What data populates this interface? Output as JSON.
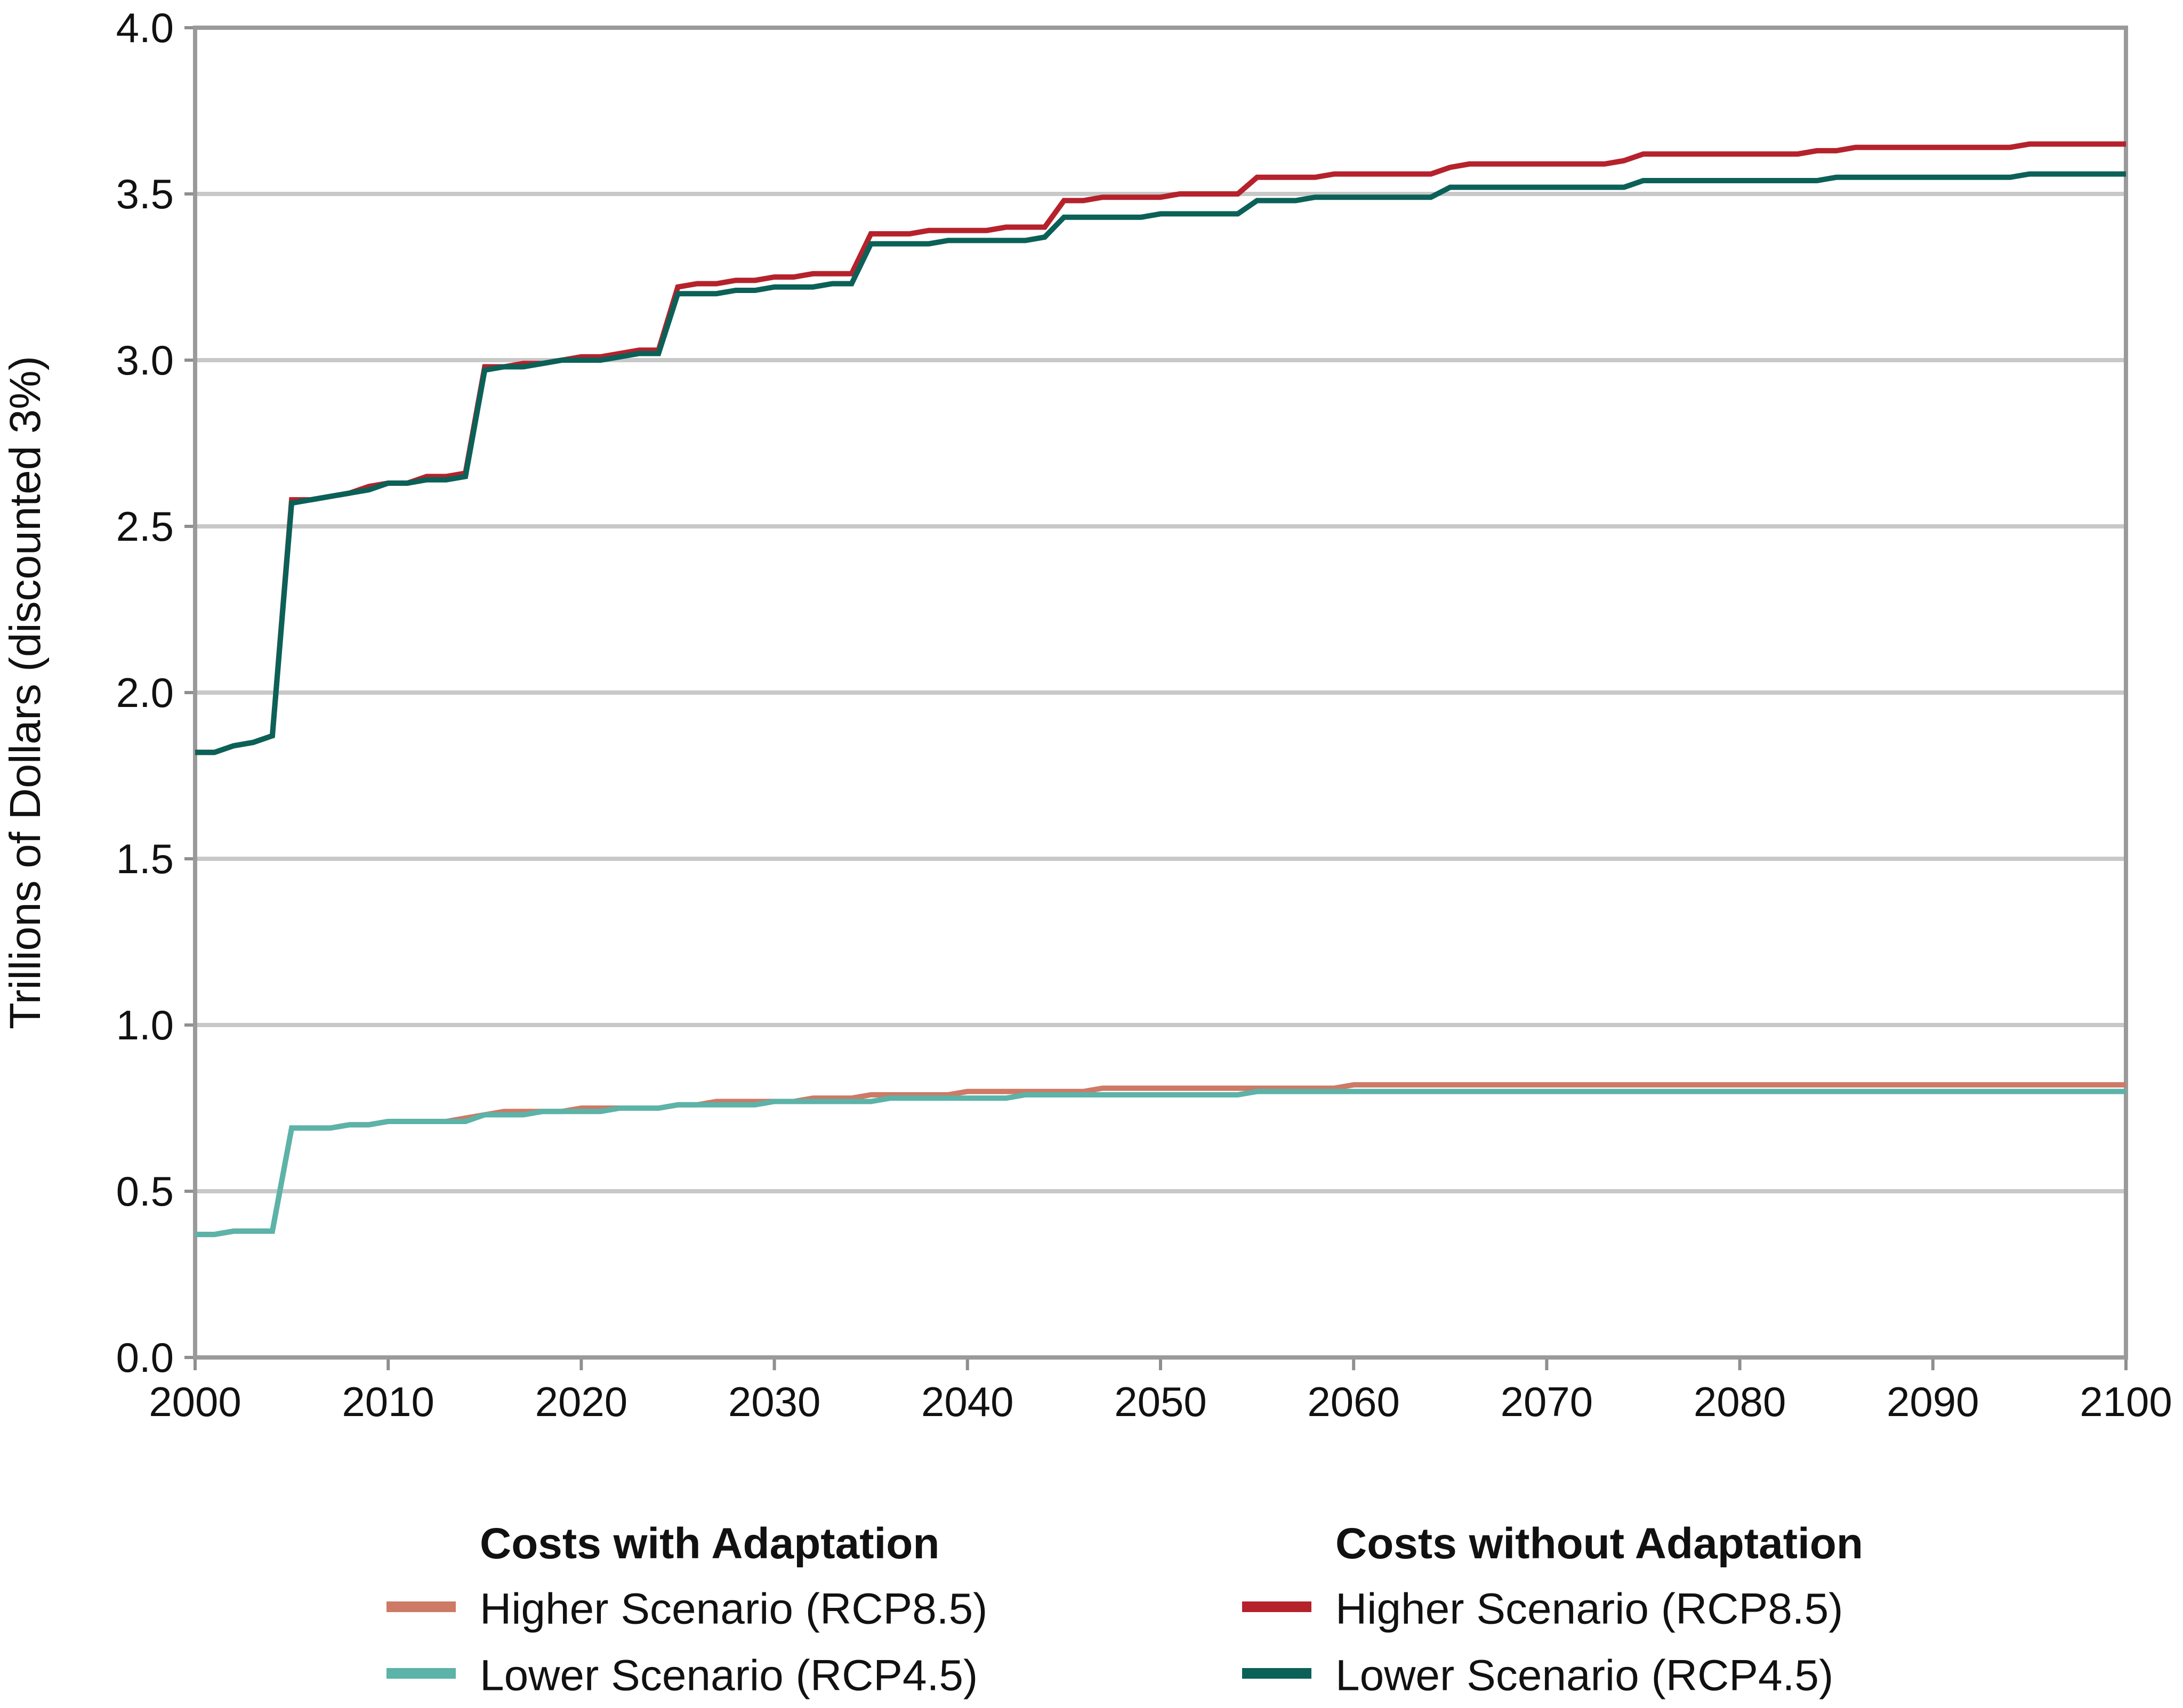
{
  "chart_data": {
    "type": "line",
    "title": "",
    "xlabel": "",
    "ylabel": "Trillions of Dollars (discounted 3%)",
    "xlim": [
      2000,
      2100
    ],
    "ylim": [
      0,
      4
    ],
    "x_ticks": [
      2000,
      2010,
      2020,
      2030,
      2040,
      2050,
      2060,
      2070,
      2080,
      2090,
      2100
    ],
    "y_ticks": [
      "0.0",
      "0.5",
      "1.0",
      "1.5",
      "2.0",
      "2.5",
      "3.0",
      "3.5",
      "4.0"
    ],
    "grid": "horizontal",
    "legend_position": "bottom",
    "legend_groups": [
      {
        "title": "Costs with Adaptation",
        "entries": [
          0,
          1
        ]
      },
      {
        "title": "Costs without Adaptation",
        "entries": [
          2,
          3
        ]
      }
    ],
    "series": [
      {
        "name": "Higher Scenario (RCP8.5)",
        "group": "Costs with Adaptation",
        "color": "#cd7a66",
        "points": [
          [
            2000,
            0.37
          ],
          [
            2001,
            0.37
          ],
          [
            2002,
            0.38
          ],
          [
            2003,
            0.38
          ],
          [
            2004,
            0.38
          ],
          [
            2005,
            0.69
          ],
          [
            2007,
            0.69
          ],
          [
            2008,
            0.7
          ],
          [
            2009,
            0.7
          ],
          [
            2010,
            0.71
          ],
          [
            2012,
            0.71
          ],
          [
            2013,
            0.71
          ],
          [
            2014,
            0.72
          ],
          [
            2015,
            0.73
          ],
          [
            2016,
            0.74
          ],
          [
            2019,
            0.74
          ],
          [
            2020,
            0.75
          ],
          [
            2022,
            0.75
          ],
          [
            2023,
            0.75
          ],
          [
            2024,
            0.75
          ],
          [
            2025,
            0.76
          ],
          [
            2026,
            0.76
          ],
          [
            2027,
            0.77
          ],
          [
            2030,
            0.77
          ],
          [
            2031,
            0.77
          ],
          [
            2032,
            0.78
          ],
          [
            2034,
            0.78
          ],
          [
            2035,
            0.79
          ],
          [
            2039,
            0.79
          ],
          [
            2040,
            0.8
          ],
          [
            2046,
            0.8
          ],
          [
            2047,
            0.81
          ],
          [
            2059,
            0.81
          ],
          [
            2060,
            0.82
          ],
          [
            2100,
            0.82
          ]
        ]
      },
      {
        "name": "Lower Scenario (RCP4.5)",
        "group": "Costs with Adaptation",
        "color": "#5cb3a8",
        "points": [
          [
            2000,
            0.37
          ],
          [
            2001,
            0.37
          ],
          [
            2002,
            0.38
          ],
          [
            2003,
            0.38
          ],
          [
            2004,
            0.38
          ],
          [
            2005,
            0.69
          ],
          [
            2007,
            0.69
          ],
          [
            2008,
            0.7
          ],
          [
            2009,
            0.7
          ],
          [
            2010,
            0.71
          ],
          [
            2014,
            0.71
          ],
          [
            2015,
            0.73
          ],
          [
            2017,
            0.73
          ],
          [
            2018,
            0.74
          ],
          [
            2021,
            0.74
          ],
          [
            2022,
            0.75
          ],
          [
            2024,
            0.75
          ],
          [
            2025,
            0.76
          ],
          [
            2029,
            0.76
          ],
          [
            2030,
            0.77
          ],
          [
            2035,
            0.77
          ],
          [
            2036,
            0.78
          ],
          [
            2042,
            0.78
          ],
          [
            2043,
            0.79
          ],
          [
            2054,
            0.79
          ],
          [
            2055,
            0.8
          ],
          [
            2100,
            0.8
          ]
        ]
      },
      {
        "name": "Higher Scenario (RCP8.5)",
        "group": "Costs without Adaptation",
        "color": "#b5222c",
        "points": [
          [
            2000,
            1.82
          ],
          [
            2001,
            1.82
          ],
          [
            2002,
            1.84
          ],
          [
            2003,
            1.85
          ],
          [
            2004,
            1.87
          ],
          [
            2005,
            2.58
          ],
          [
            2006,
            2.58
          ],
          [
            2007,
            2.59
          ],
          [
            2008,
            2.6
          ],
          [
            2009,
            2.62
          ],
          [
            2010,
            2.63
          ],
          [
            2011,
            2.63
          ],
          [
            2012,
            2.65
          ],
          [
            2013,
            2.65
          ],
          [
            2014,
            2.66
          ],
          [
            2015,
            2.98
          ],
          [
            2016,
            2.98
          ],
          [
            2017,
            2.99
          ],
          [
            2018,
            2.99
          ],
          [
            2019,
            3.0
          ],
          [
            2020,
            3.01
          ],
          [
            2021,
            3.01
          ],
          [
            2022,
            3.02
          ],
          [
            2023,
            3.03
          ],
          [
            2024,
            3.03
          ],
          [
            2025,
            3.22
          ],
          [
            2026,
            3.23
          ],
          [
            2027,
            3.23
          ],
          [
            2028,
            3.24
          ],
          [
            2029,
            3.24
          ],
          [
            2030,
            3.25
          ],
          [
            2031,
            3.25
          ],
          [
            2032,
            3.26
          ],
          [
            2034,
            3.26
          ],
          [
            2035,
            3.38
          ],
          [
            2037,
            3.38
          ],
          [
            2038,
            3.39
          ],
          [
            2041,
            3.39
          ],
          [
            2042,
            3.4
          ],
          [
            2044,
            3.4
          ],
          [
            2045,
            3.48
          ],
          [
            2046,
            3.48
          ],
          [
            2047,
            3.49
          ],
          [
            2050,
            3.49
          ],
          [
            2051,
            3.5
          ],
          [
            2054,
            3.5
          ],
          [
            2055,
            3.55
          ],
          [
            2058,
            3.55
          ],
          [
            2059,
            3.56
          ],
          [
            2064,
            3.56
          ],
          [
            2065,
            3.58
          ],
          [
            2066,
            3.59
          ],
          [
            2073,
            3.59
          ],
          [
            2074,
            3.6
          ],
          [
            2075,
            3.62
          ],
          [
            2083,
            3.62
          ],
          [
            2084,
            3.63
          ],
          [
            2085,
            3.63
          ],
          [
            2086,
            3.64
          ],
          [
            2094,
            3.64
          ],
          [
            2095,
            3.65
          ],
          [
            2100,
            3.65
          ]
        ]
      },
      {
        "name": "Lower Scenario (RCP4.5)",
        "group": "Costs without Adaptation",
        "color": "#0b6157",
        "points": [
          [
            2000,
            1.82
          ],
          [
            2001,
            1.82
          ],
          [
            2002,
            1.84
          ],
          [
            2003,
            1.85
          ],
          [
            2004,
            1.87
          ],
          [
            2005,
            2.57
          ],
          [
            2006,
            2.58
          ],
          [
            2007,
            2.59
          ],
          [
            2008,
            2.6
          ],
          [
            2009,
            2.61
          ],
          [
            2010,
            2.63
          ],
          [
            2011,
            2.63
          ],
          [
            2012,
            2.64
          ],
          [
            2013,
            2.64
          ],
          [
            2014,
            2.65
          ],
          [
            2015,
            2.97
          ],
          [
            2016,
            2.98
          ],
          [
            2017,
            2.98
          ],
          [
            2018,
            2.99
          ],
          [
            2019,
            3.0
          ],
          [
            2021,
            3.0
          ],
          [
            2022,
            3.01
          ],
          [
            2023,
            3.02
          ],
          [
            2024,
            3.02
          ],
          [
            2025,
            3.2
          ],
          [
            2027,
            3.2
          ],
          [
            2028,
            3.21
          ],
          [
            2029,
            3.21
          ],
          [
            2030,
            3.22
          ],
          [
            2032,
            3.22
          ],
          [
            2033,
            3.23
          ],
          [
            2034,
            3.23
          ],
          [
            2035,
            3.35
          ],
          [
            2038,
            3.35
          ],
          [
            2039,
            3.36
          ],
          [
            2043,
            3.36
          ],
          [
            2044,
            3.37
          ],
          [
            2045,
            3.43
          ],
          [
            2049,
            3.43
          ],
          [
            2050,
            3.44
          ],
          [
            2054,
            3.44
          ],
          [
            2055,
            3.48
          ],
          [
            2057,
            3.48
          ],
          [
            2058,
            3.49
          ],
          [
            2064,
            3.49
          ],
          [
            2065,
            3.52
          ],
          [
            2074,
            3.52
          ],
          [
            2075,
            3.54
          ],
          [
            2084,
            3.54
          ],
          [
            2085,
            3.55
          ],
          [
            2094,
            3.55
          ],
          [
            2095,
            3.56
          ],
          [
            2100,
            3.56
          ]
        ]
      }
    ]
  }
}
